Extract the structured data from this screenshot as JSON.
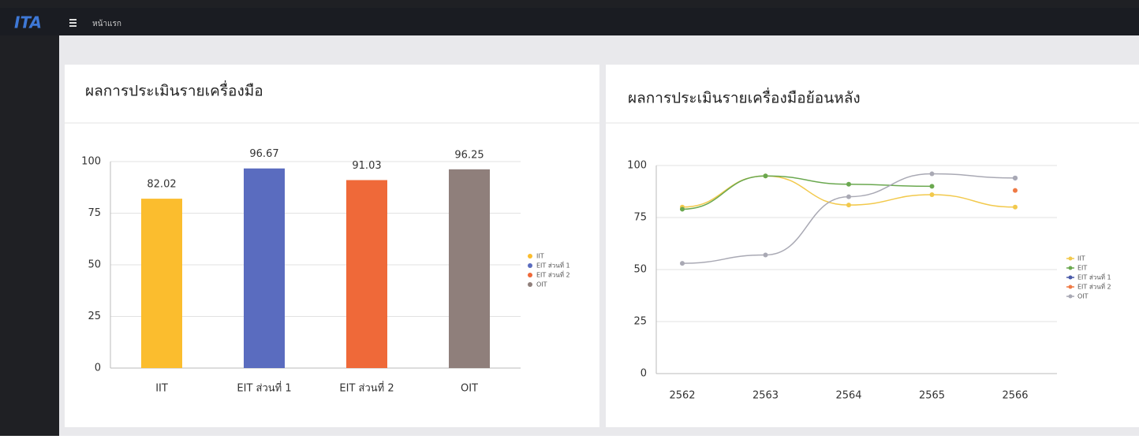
{
  "header": {
    "logo": "ITA",
    "menu": "หน้าแรก"
  },
  "chart_data": [
    {
      "type": "bar",
      "title": "ผลการประเมินรายเครื่องมือ",
      "categories": [
        "IIT",
        "EIT ส่วนที่ 1",
        "EIT ส่วนที่ 2",
        "OIT"
      ],
      "values": [
        82.02,
        96.67,
        91.03,
        96.25
      ],
      "colors": [
        "#fbbd2e",
        "#5a6cbf",
        "#ef6939",
        "#8f7f7b"
      ],
      "ylim": [
        0,
        100
      ],
      "yticks": [
        0,
        25,
        50,
        75,
        100
      ],
      "grid": true,
      "legend": "right"
    },
    {
      "type": "line",
      "title": "ผลการประเมินรายเครื่องมือย้อนหลัง",
      "categories": [
        "2562",
        "2563",
        "2564",
        "2565",
        "2566"
      ],
      "series": [
        {
          "name": "IIT",
          "color": "#f2c94c",
          "values": [
            80,
            95,
            81,
            86,
            80
          ]
        },
        {
          "name": "EIT",
          "color": "#6aa84f",
          "values": [
            79,
            95,
            91,
            90,
            null
          ]
        },
        {
          "name": "EIT ส่วนที่ 1",
          "color": "#4a5aa8",
          "values": [
            null,
            null,
            null,
            null,
            94
          ]
        },
        {
          "name": "EIT ส่วนที่ 2",
          "color": "#ef7a45",
          "values": [
            null,
            null,
            null,
            null,
            88
          ]
        },
        {
          "name": "OIT",
          "color": "#a9a9b4",
          "values": [
            53,
            57,
            85,
            96,
            94
          ]
        }
      ],
      "ylim": [
        0,
        100
      ],
      "yticks": [
        0,
        25,
        50,
        75,
        100
      ],
      "grid": true,
      "legend": "right"
    }
  ]
}
